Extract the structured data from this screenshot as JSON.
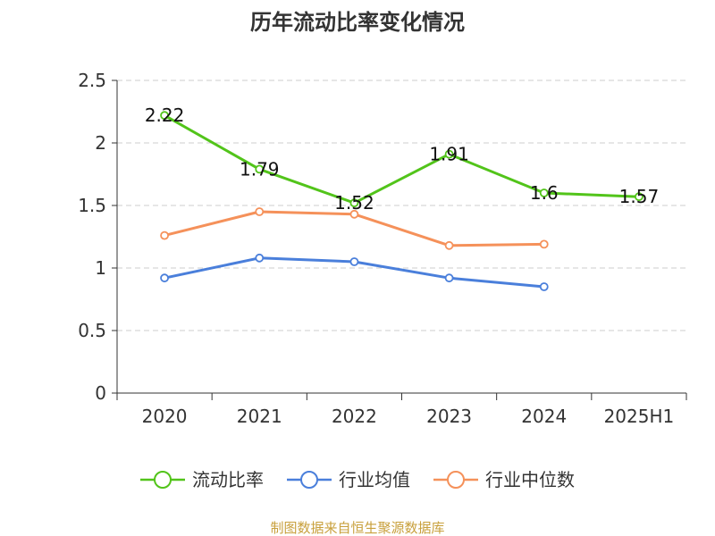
{
  "chart_data": {
    "type": "line",
    "title": "历年流动比率变化情况",
    "categories": [
      "2020",
      "2021",
      "2022",
      "2023",
      "2024",
      "2025H1"
    ],
    "ylim": [
      0,
      2.5
    ],
    "yticks": [
      "0",
      "0.5",
      "1",
      "1.5",
      "2",
      "2.5"
    ],
    "grid": true,
    "legend_position": "bottom",
    "series": [
      {
        "name": "流动比率",
        "color": "#52c41a",
        "values": [
          2.22,
          1.79,
          1.52,
          1.91,
          1.6,
          1.57
        ],
        "labels": [
          "2.22",
          "1.79",
          "1.52",
          "1.91",
          "1.6",
          "1.57"
        ]
      },
      {
        "name": "行业均值",
        "color": "#4a7fdb",
        "values": [
          0.92,
          1.08,
          1.05,
          0.92,
          0.85,
          null
        ]
      },
      {
        "name": "行业中位数",
        "color": "#f5915a",
        "values": [
          1.26,
          1.45,
          1.43,
          1.18,
          1.19,
          null
        ]
      }
    ]
  },
  "footer": {
    "source": "制图数据来自恒生聚源数据库",
    "source_color": "#c8a03c"
  }
}
